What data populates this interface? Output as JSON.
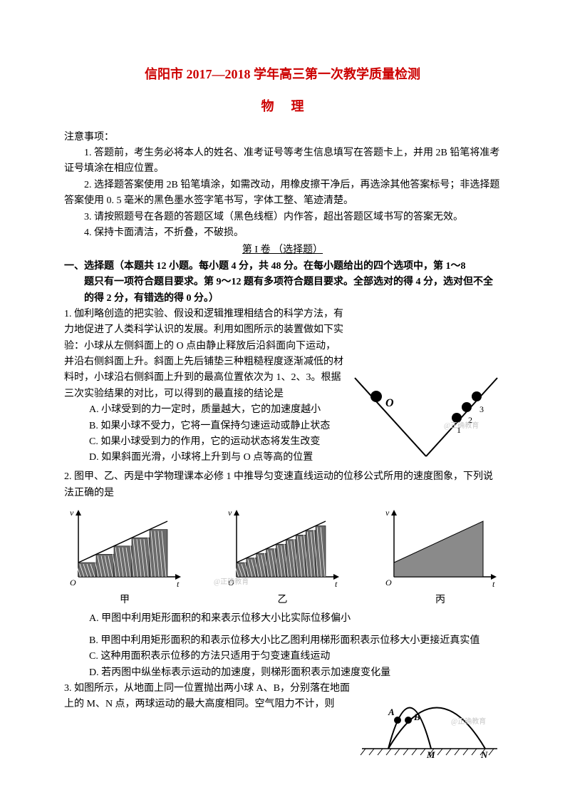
{
  "title": "信阳市 2017—2018 学年高三第一次教学质量检测",
  "subject": "物理",
  "notice_header": "注意事项：",
  "notices": [
    "1. 答题前，考生务必将本人的姓名、准考证号等考生信息填写在答题卡上，并用 2B 铅笔将准考证号填涂在相应位置。",
    "2. 选择题答案使用 2B 铅笔填涂，如需改动，用橡皮擦干净后，再选涂其他答案标号；非选择题答案使用 0. 5 毫米的黑色墨水签字笔书写，字体工整、笔迹清楚。",
    "3. 请按照题号在各题的答题区域（黑色线框）内作答，超出答题区域书写的答案无效。",
    "4. 保持卡面清洁，不折叠，不破损。"
  ],
  "paper_section": "第 I 卷 （选择题）",
  "choice_head_1": "一、选择题（本题共 12 小题。每小题 4 分，共 48 分。在每小题给出的四个选项中，第 1～8",
  "choice_head_2": "题只有一项符合题目要求。第 9～12 题有多项符合题目要求。全部选对的得 4 分，选对但不全的得 2 分，有错选的得 0 分。）",
  "q1": {
    "num": "1.",
    "stem": "伽利略创造的把实验、假设和逻辑推理相结合的科学方法，有力地促进了人类科学认识的发展。利用如图所示的装置做如下实验：小球从左侧斜面上的 O 点由静止释放后沿斜面向下运动，并沿右侧斜面上升。斜面上先后铺垫三种粗糙程度逐渐减低的材料时，小球沿右侧斜面上升到的最高位置依次为 1、2、3。根据三次实验结果的对比，可以得到的最直接的结论是",
    "opts": [
      "A. 小球受到的力一定时，质量越大，它的加速度越小",
      "B. 如果小球不受力，它将一直保持匀速运动或静止状态",
      "C. 如果小球受到力的作用，它的运动状态将发生改变",
      "D. 如果斜面光滑，小球将上升到与 O 点等高的位置"
    ],
    "figure": {
      "type": "diagram",
      "O_label": "O",
      "right_labels": [
        "1",
        "2",
        "3"
      ],
      "ball_color": "#000000",
      "line_color": "#000000",
      "background": "#ffffff",
      "watermark": "@正确教育"
    }
  },
  "q2": {
    "num": "2.",
    "stem": "图甲、乙、丙是中学物理课本必修 1 中推导匀变速直线运动的位移公式所用的速度图象，下列说法正确的是",
    "labels": [
      "甲",
      "乙",
      "丙"
    ],
    "axes": {
      "x": "t",
      "y": "v",
      "origin": "O"
    },
    "charts": [
      {
        "type": "bar",
        "bars": 5,
        "fill": "#777777",
        "hatch": true
      },
      {
        "type": "bar",
        "bars": 9,
        "fill": "#777777",
        "hatch": true
      },
      {
        "type": "area",
        "fill": "#9e9e9e"
      }
    ],
    "chart_style": {
      "width": 170,
      "height": 120,
      "axis_color": "#000000",
      "bar_fill": "#6b6b6b",
      "hatch_color": "#ffffff",
      "area_fill": "#8a8a8a",
      "label_fontsize": 14
    },
    "watermark": "@正确教育",
    "opts": [
      "A. 甲图中利用矩形面积的和来表示位移大小比实际位移偏小",
      "B. 甲图中利用矩形面积的和表示位移大小比乙图利用梯形面积表示位移大小更接近真实值",
      "C. 这种用面积表示位移的方法只适用于匀变速直线运动",
      "D. 若丙图中纵坐标表示运动的加速度，则梯形面积表示加速度变化量"
    ]
  },
  "q3": {
    "num": "3.",
    "stem": "如图所示，从地面上同一位置抛出两小球 A、B，分别落在地面上的 M、N 点，两球运动的最大高度相同。空气阻力不计，则",
    "figure": {
      "type": "diagram",
      "labels": {
        "A": "A",
        "B": "B",
        "M": "M",
        "N": "N"
      },
      "curve_color": "#000000",
      "ground_hatch": "#000000",
      "watermark": "@正确教育"
    }
  },
  "colors": {
    "title": "#cc0000",
    "text": "#000000",
    "background": "#ffffff",
    "watermark": "#c7c7c7"
  }
}
